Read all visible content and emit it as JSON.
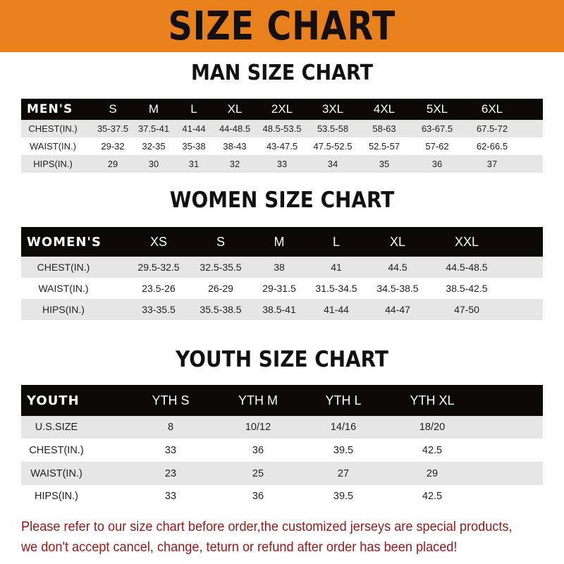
{
  "banner": {
    "title": "SIZE CHART",
    "color": "#e8801c"
  },
  "men": {
    "title": "MAN SIZE CHART",
    "header": [
      "MEN'S",
      "S",
      "M",
      "L",
      "XL",
      "2XL",
      "3XL",
      "4XL",
      "5XL",
      "6XL"
    ],
    "rows": [
      [
        "CHEST(IN.)",
        "35-37.5",
        "37.5-41",
        "41-44",
        "44-48.5",
        "48.5-53.5",
        "53.5-58",
        "58-63",
        "63-67.5",
        "67.5-72"
      ],
      [
        "WAIST(IN.)",
        "29-32",
        "32-35",
        "35-38",
        "38-43",
        "43-47.5",
        "47.5-52.5",
        "52.5-57",
        "57-62",
        "62-66.5"
      ],
      [
        "HIPS(IN.)",
        "29",
        "30",
        "31",
        "32",
        "33",
        "34",
        "35",
        "36",
        "37"
      ]
    ]
  },
  "women": {
    "title": "WOMEN SIZE CHART",
    "header": [
      "WOMEN'S",
      "XS",
      "S",
      "M",
      "L",
      "XL",
      "XXL"
    ],
    "rows": [
      [
        "CHEST(IN.)",
        "29.5-32.5",
        "32.5-35.5",
        "38",
        "41",
        "44.5",
        "44.5-48.5"
      ],
      [
        "WAIST(IN.)",
        "23.5-26",
        "26-29",
        "29-31.5",
        "31.5-34.5",
        "34.5-38.5",
        "38.5-42.5"
      ],
      [
        "HIPS(IN.)",
        "33-35.5",
        "35.5-38.5",
        "38.5-41",
        "41-44",
        "44-47",
        "47-50"
      ]
    ]
  },
  "youth": {
    "title": "YOUTH SIZE CHART",
    "header": [
      "YOUTH",
      "YTH S",
      "YTH M",
      "YTH L",
      "YTH XL"
    ],
    "rows": [
      [
        "U.S.SIZE",
        "8",
        "10/12",
        "14/16",
        "18/20"
      ],
      [
        "CHEST(IN.)",
        "33",
        "36",
        "39.5",
        "42.5"
      ],
      [
        "WAIST(IN.)",
        "23",
        "25",
        "27",
        "29"
      ],
      [
        "HIPS(IN.)",
        "33",
        "36",
        "39.5",
        "42.5"
      ]
    ]
  },
  "note": {
    "line1": "Please refer to our size chart before order,the customized jerseys are special products,",
    "line2": "we don't accept cancel, change, teturn or refund after order has been placed!",
    "color": "#9c1616"
  }
}
